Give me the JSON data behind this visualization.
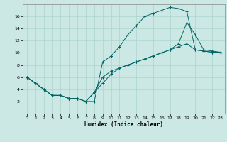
{
  "xlabel": "Humidex (Indice chaleur)",
  "bg_color": "#cce8e4",
  "line_color": "#006666",
  "grid_color": "#aad4cc",
  "xlim": [
    -0.5,
    23.5
  ],
  "ylim": [
    0,
    18
  ],
  "xticks": [
    0,
    1,
    2,
    3,
    4,
    5,
    6,
    7,
    8,
    9,
    10,
    11,
    12,
    13,
    14,
    15,
    16,
    17,
    18,
    19,
    20,
    21,
    22,
    23
  ],
  "yticks": [
    2,
    4,
    6,
    8,
    10,
    12,
    14,
    16
  ],
  "line1_x": [
    0,
    1,
    2,
    3,
    4,
    5,
    6,
    7,
    8,
    9,
    10,
    11,
    12,
    13,
    14,
    15,
    16,
    17,
    18,
    19,
    20,
    21,
    22,
    23
  ],
  "line1_y": [
    6,
    5,
    4,
    3,
    3,
    2.5,
    2.5,
    2,
    2,
    8.5,
    9.5,
    11,
    13,
    14.5,
    16,
    16.5,
    17,
    17.5,
    17.3,
    16.8,
    10.5,
    10.3,
    10.1,
    10.1
  ],
  "line2_x": [
    0,
    1,
    2,
    3,
    4,
    5,
    6,
    7,
    8,
    9,
    10,
    11,
    12,
    13,
    14,
    15,
    16,
    17,
    18,
    19,
    20,
    21,
    22,
    23
  ],
  "line2_y": [
    6,
    5,
    4,
    3,
    3,
    2.5,
    2.5,
    2,
    3.5,
    6,
    7,
    7.5,
    8,
    8.5,
    9,
    9.5,
    10,
    10.5,
    11,
    11.5,
    10.5,
    10.3,
    10.1,
    10.1
  ],
  "line3_x": [
    0,
    2,
    3,
    4,
    5,
    6,
    7,
    8,
    9,
    10,
    11,
    12,
    13,
    14,
    15,
    16,
    17,
    18,
    19,
    20,
    21,
    22,
    23
  ],
  "line3_y": [
    6,
    4,
    3,
    3,
    2.5,
    2.5,
    2,
    3.5,
    5,
    6.5,
    7.5,
    8,
    8.5,
    9,
    9.5,
    10,
    10.5,
    11.5,
    15,
    13,
    10.5,
    10.3,
    10.1
  ]
}
